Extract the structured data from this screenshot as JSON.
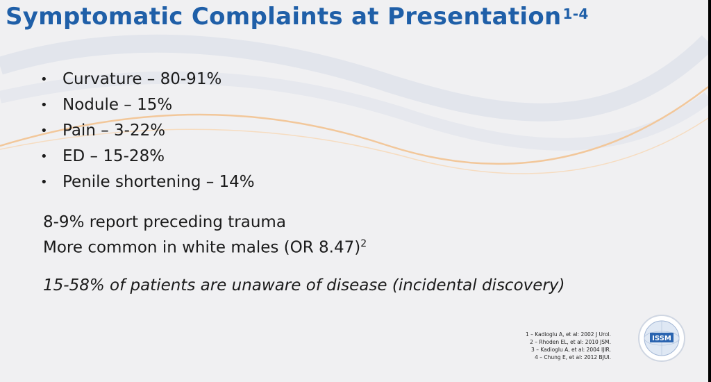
{
  "title": {
    "text": "Symptomatic Complaints at Presentation",
    "superscript": "1-4"
  },
  "bullets": [
    {
      "label": "Curvature – 80-91%"
    },
    {
      "label": "Nodule – 15%"
    },
    {
      "label": "Pain – 3-22%"
    },
    {
      "label": "ED – 15-28%"
    },
    {
      "label": "Penile shortening – 14%"
    }
  ],
  "notes": {
    "trauma": "8-9% report preceding trauma",
    "common": "More common in white males (OR 8.47)",
    "common_sup": "2",
    "unaware": "15-58% of patients are unaware of disease (incidental discovery)"
  },
  "references": [
    "1 – Kadioglu A, et al: 2002 J Urol.",
    "2 – Rhoden EL, et al: 2010 JSM.",
    "3 – Kadioglu A, et al: 2004 IJIR.",
    "4 – Chung E, et al: 2012 BJUI."
  ],
  "logo": {
    "text": "ISSM"
  },
  "colors": {
    "title": "#1f5fa8",
    "background": "#f0f0f2",
    "accent_swoosh": "#f2c79a"
  }
}
